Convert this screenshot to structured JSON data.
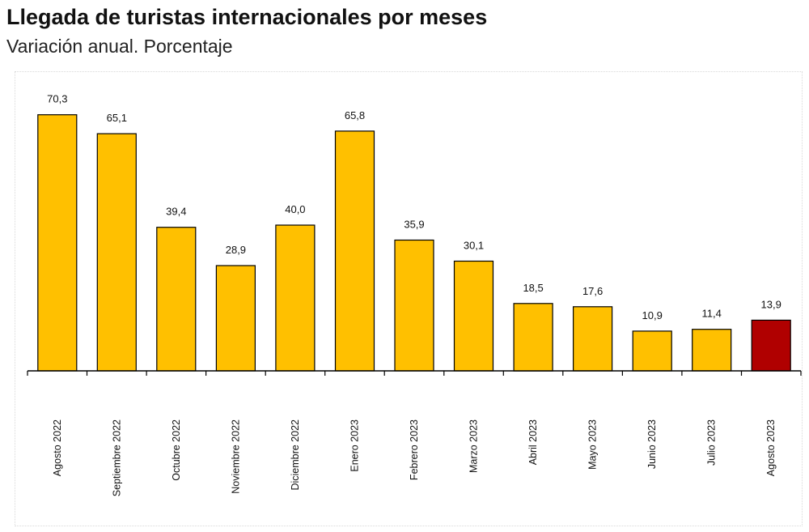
{
  "header": {
    "title": "Llegada de turistas internacionales por meses",
    "subtitle": "Variación anual. Porcentaje"
  },
  "chart_data": {
    "type": "bar",
    "title": "Llegada de turistas internacionales por meses",
    "subtitle": "Variación anual. Porcentaje",
    "categories": [
      "Agosto 2022",
      "Septiembre 2022",
      "Octubre 2022",
      "Noviembre 2022",
      "Diciembre 2022",
      "Enero 2023",
      "Febrero 2023",
      "Marzo 2023",
      "Abril 2023",
      "Mayo 2023",
      "Junio 2023",
      "Julio 2023",
      "Agosto 2023"
    ],
    "values": [
      70.3,
      65.1,
      39.4,
      28.9,
      40.0,
      65.8,
      35.9,
      30.1,
      18.5,
      17.6,
      10.9,
      11.4,
      13.9
    ],
    "value_labels": [
      "70,3",
      "65,1",
      "39,4",
      "28,9",
      "40,0",
      "65,8",
      "35,9",
      "30,1",
      "18,5",
      "17,6",
      "10,9",
      "11,4",
      "13,9"
    ],
    "highlight_index": 12,
    "colors": {
      "bar": "#FFC000",
      "highlight": "#B00000",
      "outline": "#000000",
      "axis": "#000000"
    },
    "ylim": [
      0,
      72
    ],
    "xlabel": "",
    "ylabel": "",
    "grid": false,
    "legend": "none"
  }
}
